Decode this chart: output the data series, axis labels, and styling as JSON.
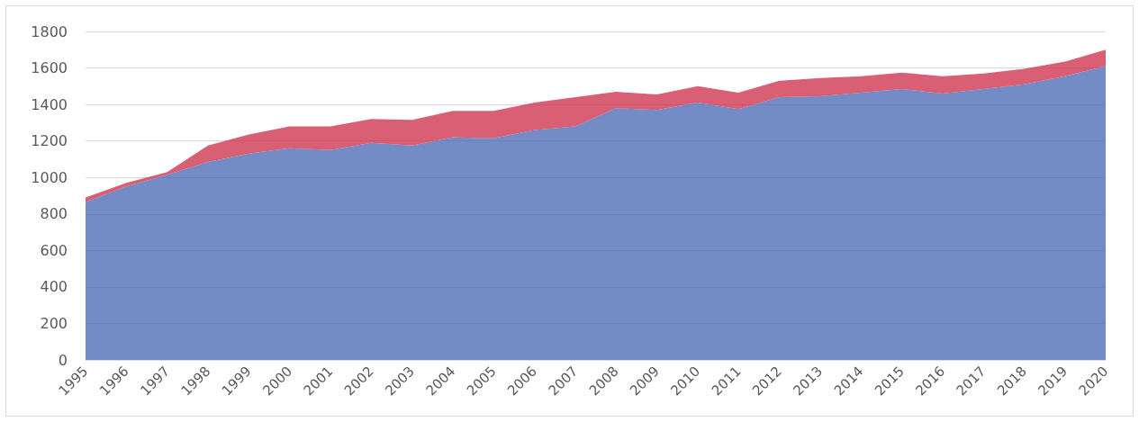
{
  "chart_data": {
    "type": "area",
    "stacked": true,
    "categories": [
      "1995",
      "1996",
      "1997",
      "1998",
      "1999",
      "2000",
      "2001",
      "2002",
      "2003",
      "2004",
      "2005",
      "2006",
      "2007",
      "2008",
      "2009",
      "2010",
      "2011",
      "2012",
      "2013",
      "2014",
      "2015",
      "2016",
      "2017",
      "2018",
      "2019",
      "2020"
    ],
    "series": [
      {
        "color": "#4566b3",
        "values": [
          865,
          950,
          1015,
          1085,
          1130,
          1160,
          1150,
          1190,
          1175,
          1220,
          1215,
          1260,
          1280,
          1380,
          1370,
          1410,
          1375,
          1440,
          1445,
          1465,
          1485,
          1460,
          1485,
          1510,
          1555,
          1610
        ]
      },
      {
        "color": "#cc2a45",
        "values": [
          25,
          20,
          15,
          90,
          105,
          120,
          130,
          130,
          140,
          145,
          150,
          150,
          160,
          90,
          85,
          90,
          90,
          90,
          100,
          90,
          90,
          95,
          85,
          85,
          80,
          90
        ]
      }
    ],
    "ylim": [
      0,
      1800
    ],
    "yticks": [
      0,
      200,
      400,
      600,
      800,
      1000,
      1200,
      1400,
      1600,
      1800
    ],
    "grid": "y"
  }
}
